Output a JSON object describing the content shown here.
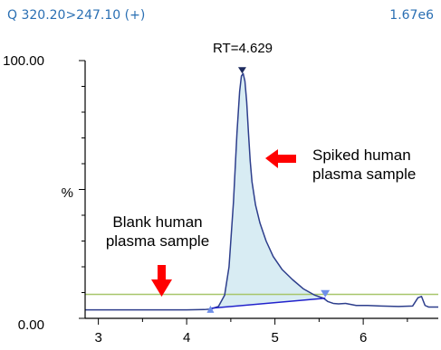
{
  "header": {
    "trace": "Q 320.20>247.10 (+)",
    "intensity": "1.67e6"
  },
  "chart_data": {
    "type": "line",
    "title": "",
    "xlabel": "",
    "ylabel": "%",
    "xlim": [
      2.85,
      6.85
    ],
    "ylim": [
      0,
      100
    ],
    "x_ticks": [
      3,
      4,
      5,
      6
    ],
    "y_tick_labels": [
      "100.00",
      "0.00"
    ],
    "grid": false,
    "peak_label": "RT=4.629",
    "peak_rt": 4.629,
    "threshold_level": 9.3,
    "integration_start": [
      4.27,
      3.9
    ],
    "integration_end": [
      5.57,
      7.8
    ],
    "series": [
      {
        "x": [
          2.85,
          3.2,
          3.6,
          4.0,
          4.2,
          4.27,
          4.36,
          4.43,
          4.48,
          4.53,
          4.57,
          4.6,
          4.62,
          4.64,
          4.66,
          4.68,
          4.7,
          4.72,
          4.74,
          4.78,
          4.83,
          4.9,
          4.98,
          5.08,
          5.2,
          5.32,
          5.45,
          5.55,
          5.6,
          5.66,
          5.72,
          5.8,
          5.92,
          6.05,
          6.2,
          6.4,
          6.56,
          6.62,
          6.66,
          6.7,
          6.74,
          6.85
        ],
        "y": [
          3.3,
          3.3,
          3.3,
          3.3,
          3.4,
          3.6,
          4.6,
          9.0,
          20.0,
          45.0,
          72.0,
          88.0,
          94.0,
          95.0,
          92.0,
          84.0,
          72.0,
          61.0,
          53.0,
          44.0,
          37.0,
          30.0,
          24.0,
          19.0,
          15.0,
          11.5,
          9.0,
          7.8,
          6.5,
          5.8,
          5.6,
          5.8,
          5.0,
          5.0,
          4.8,
          4.6,
          4.8,
          8.0,
          8.5,
          5.0,
          4.4,
          4.4
        ]
      }
    ]
  },
  "annotations": {
    "spiked_line1": "Spiked human",
    "spiked_line2": "plasma sample",
    "blank_line1": "Blank human",
    "blank_line2": "plasma sample"
  },
  "colors": {
    "trace": "#2d3e8c",
    "fill": "#d8ecf3",
    "threshold": "#a7c66b",
    "baseline": "#2222cc",
    "marker": "#6f8fe8",
    "arrow": "#ff0000",
    "header": "#2a6fb3"
  }
}
